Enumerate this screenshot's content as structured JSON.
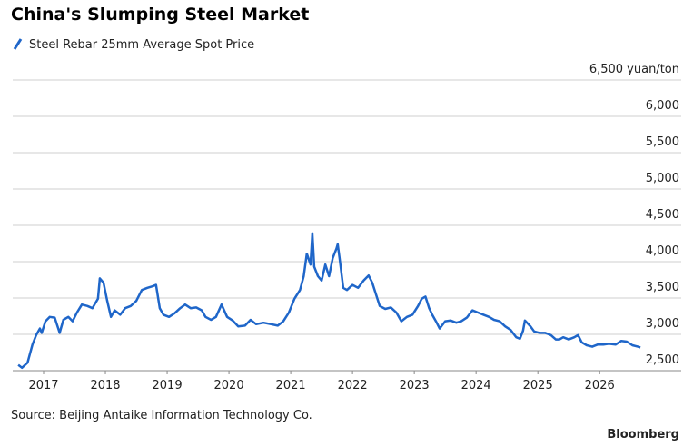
{
  "chart_data": {
    "type": "line",
    "title": "China's Slumping Steel Market",
    "source": "Source: Beijing Antaike Information Technology Co.",
    "credit": "Bloomberg",
    "x": [
      2016.59,
      2016.65,
      2016.74,
      2016.82,
      2016.88,
      2016.94,
      2016.97,
      2017.03,
      2017.1,
      2017.18,
      2017.26,
      2017.32,
      2017.4,
      2017.47,
      2017.54,
      2017.62,
      2017.71,
      2017.79,
      2017.88,
      2017.91,
      2017.97,
      2018.03,
      2018.09,
      2018.15,
      2018.24,
      2018.32,
      2018.41,
      2018.5,
      2018.59,
      2018.68,
      2018.76,
      2018.82,
      2018.88,
      2018.94,
      2019.03,
      2019.12,
      2019.21,
      2019.29,
      2019.38,
      2019.47,
      2019.56,
      2019.62,
      2019.71,
      2019.79,
      2019.88,
      2019.97,
      2020.06,
      2020.15,
      2020.26,
      2020.35,
      2020.44,
      2020.56,
      2020.68,
      2020.79,
      2020.88,
      2020.97,
      2021.06,
      2021.15,
      2021.21,
      2021.26,
      2021.32,
      2021.35,
      2021.38,
      2021.44,
      2021.5,
      2021.56,
      2021.62,
      2021.68,
      2021.74,
      2021.76,
      2021.79,
      2021.85,
      2021.91,
      2022.0,
      2022.09,
      2022.18,
      2022.26,
      2022.32,
      2022.38,
      2022.44,
      2022.53,
      2022.62,
      2022.71,
      2022.79,
      2022.88,
      2022.97,
      2023.06,
      2023.12,
      2023.18,
      2023.24,
      2023.29,
      2023.35,
      2023.41,
      2023.5,
      2023.59,
      2023.68,
      2023.76,
      2023.85,
      2023.94,
      2024.03,
      2024.12,
      2024.21,
      2024.29,
      2024.38,
      2024.47,
      2024.56,
      2024.65,
      2024.71,
      2024.76,
      2024.79,
      2024.88,
      2024.94,
      2025.03,
      2025.12,
      2025.21,
      2025.29,
      2025.35,
      2025.41,
      2025.5,
      2025.59,
      2025.65,
      2025.71,
      2025.79,
      2025.88,
      2025.97,
      2026.06,
      2026.15,
      2026.26,
      2026.35,
      2026.44,
      2026.53,
      2026.62,
      2026.66
    ],
    "series": [
      {
        "name": "Steel Rebar 25mm Average Spot Price",
        "color": "#1f66c9",
        "values": [
          2580,
          2540,
          2610,
          2860,
          2990,
          3080,
          3020,
          3180,
          3240,
          3230,
          3020,
          3200,
          3240,
          3180,
          3300,
          3410,
          3390,
          3360,
          3490,
          3770,
          3710,
          3460,
          3240,
          3330,
          3270,
          3360,
          3390,
          3460,
          3610,
          3640,
          3660,
          3680,
          3360,
          3270,
          3240,
          3290,
          3360,
          3410,
          3360,
          3370,
          3330,
          3240,
          3200,
          3240,
          3410,
          3240,
          3190,
          3110,
          3120,
          3200,
          3140,
          3160,
          3140,
          3120,
          3180,
          3300,
          3490,
          3610,
          3800,
          4110,
          3960,
          4390,
          3930,
          3800,
          3740,
          3960,
          3800,
          4050,
          4180,
          4240,
          4050,
          3640,
          3610,
          3680,
          3640,
          3740,
          3810,
          3710,
          3550,
          3390,
          3350,
          3370,
          3300,
          3180,
          3240,
          3270,
          3390,
          3490,
          3520,
          3360,
          3270,
          3180,
          3080,
          3180,
          3190,
          3160,
          3180,
          3230,
          3330,
          3300,
          3270,
          3240,
          3200,
          3180,
          3110,
          3060,
          2960,
          2940,
          3050,
          3190,
          3110,
          3040,
          3020,
          3020,
          2990,
          2930,
          2930,
          2960,
          2930,
          2960,
          2990,
          2890,
          2850,
          2830,
          2860,
          2860,
          2870,
          2860,
          2910,
          2900,
          2850,
          2830,
          2820
        ]
      }
    ],
    "xlim": [
      2016.5,
      2027.32
    ],
    "xticks": [
      2017,
      2018,
      2019,
      2020,
      2021,
      2022,
      2023,
      2024,
      2025,
      2026
    ],
    "ylim": [
      2500,
      6500
    ],
    "yticks": [
      {
        "value": 2500,
        "label": "2,500"
      },
      {
        "value": 3000,
        "label": "3,000"
      },
      {
        "value": 3500,
        "label": "3,500"
      },
      {
        "value": 4000,
        "label": "4,000"
      },
      {
        "value": 4500,
        "label": "4,500"
      },
      {
        "value": 5000,
        "label": "5,000"
      },
      {
        "value": 5500,
        "label": "5,500"
      },
      {
        "value": 6000,
        "label": "6,000"
      },
      {
        "value": 6500,
        "label": "6,500 yuan/ton"
      }
    ],
    "grid": true
  }
}
